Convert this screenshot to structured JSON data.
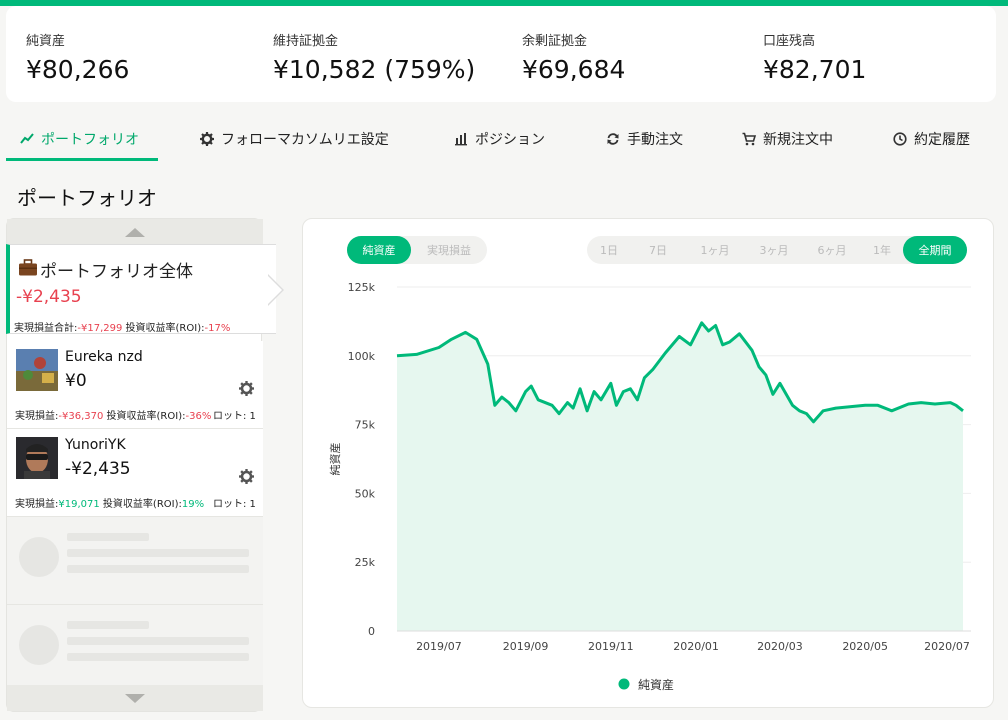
{
  "colors": {
    "accent": "#00b97a",
    "negative": "#e8414f",
    "chart_fill": "#e6f7ef"
  },
  "summary": [
    {
      "label": "純資産",
      "value": "¥80,266"
    },
    {
      "label": "維持証拠金",
      "value": "¥10,582 (759%)"
    },
    {
      "label": "余剰証拠金",
      "value": "¥69,684"
    },
    {
      "label": "口座残高",
      "value": "¥82,701"
    }
  ],
  "tabs": [
    {
      "label": "ポートフォリオ",
      "icon": "trend-line-icon",
      "active": true
    },
    {
      "label": "フォローマカソムリエ設定",
      "icon": "gear-icon"
    },
    {
      "label": "ポジション",
      "icon": "bar-chart-icon"
    },
    {
      "label": "手動注文",
      "icon": "refresh-icon"
    },
    {
      "label": "新規注文中",
      "icon": "cart-icon"
    },
    {
      "label": "約定履歴",
      "icon": "clock-icon"
    }
  ],
  "page_title": "ポートフォリオ",
  "portfolio": {
    "title": "ポートフォリオ全体",
    "amount": "-¥2,435",
    "realized_label": "実現損益合計:",
    "realized_value": "-¥17,299",
    "roi_label": "投資収益率(ROI):",
    "roi_value": "-17%"
  },
  "traders": [
    {
      "name": "Eureka nzd",
      "amount": "¥0",
      "realized_label": "実現損益:",
      "realized_value": "-¥36,370",
      "roi_label": "投資収益率(ROI):",
      "roi_value": "-36%",
      "lot_label": "ロット: 1"
    },
    {
      "name": "YunoriYK",
      "amount": "-¥2,435",
      "realized_label": "実現損益:",
      "realized_value": "¥19,071",
      "roi_label": "投資収益率(ROI):",
      "roi_value": "19%",
      "lot_label": "ロット: 1"
    }
  ],
  "chart_toggle": [
    "純資産",
    "実現損益"
  ],
  "ranges": [
    "1日",
    "7日",
    "1ヶ月",
    "3ヶ月",
    "6ヶ月",
    "1年",
    "全期間"
  ],
  "chart_data": {
    "type": "area",
    "title": "",
    "xlabel": "",
    "ylabel": "純資産",
    "ylim": [
      0,
      125000
    ],
    "yticks": [
      0,
      25000,
      50000,
      75000,
      100000,
      125000
    ],
    "ytick_labels": [
      "0",
      "25k",
      "50k",
      "75k",
      "100k",
      "125k"
    ],
    "xtick_labels": [
      "2019/07",
      "2019/09",
      "2019/11",
      "2020/01",
      "2020/03",
      "2020/05",
      "2020/07"
    ],
    "grid": true,
    "legend": "bottom",
    "series": [
      {
        "name": "純資産",
        "x": [
          "2019/06/01",
          "2019/06/15",
          "2019/07/01",
          "2019/07/10",
          "2019/07/20",
          "2019/07/28",
          "2019/08/05",
          "2019/08/10",
          "2019/08/15",
          "2019/08/20",
          "2019/08/25",
          "2019/09/01",
          "2019/09/05",
          "2019/09/10",
          "2019/09/20",
          "2019/09/25",
          "2019/10/01",
          "2019/10/05",
          "2019/10/10",
          "2019/10/15",
          "2019/10/20",
          "2019/10/25",
          "2019/11/01",
          "2019/11/05",
          "2019/11/10",
          "2019/11/15",
          "2019/11/20",
          "2019/11/25",
          "2019/12/01",
          "2019/12/10",
          "2019/12/20",
          "2019/12/28",
          "2020/01/05",
          "2020/01/10",
          "2020/01/15",
          "2020/01/20",
          "2020/01/25",
          "2020/02/01",
          "2020/02/10",
          "2020/02/15",
          "2020/02/20",
          "2020/02/25",
          "2020/03/01",
          "2020/03/10",
          "2020/03/15",
          "2020/03/20",
          "2020/03/25",
          "2020/04/01",
          "2020/04/10",
          "2020/04/20",
          "2020/05/01",
          "2020/05/10",
          "2020/05/20",
          "2020/06/01",
          "2020/06/10",
          "2020/06/20",
          "2020/07/01",
          "2020/07/05",
          "2020/07/10"
        ],
        "values": [
          100000,
          100500,
          103000,
          106000,
          108500,
          106000,
          97000,
          82000,
          85000,
          83000,
          80000,
          87000,
          89000,
          84000,
          82000,
          79000,
          83000,
          81000,
          88000,
          80000,
          87000,
          84000,
          90000,
          82000,
          87000,
          88000,
          84000,
          92000,
          95000,
          101000,
          107000,
          104000,
          112000,
          109000,
          111000,
          104000,
          105000,
          108000,
          102000,
          96000,
          93000,
          86000,
          90000,
          82000,
          80000,
          79000,
          76000,
          80000,
          81000,
          81500,
          82000,
          82000,
          80000,
          82500,
          83000,
          82500,
          83000,
          82000,
          80000
        ]
      }
    ]
  }
}
